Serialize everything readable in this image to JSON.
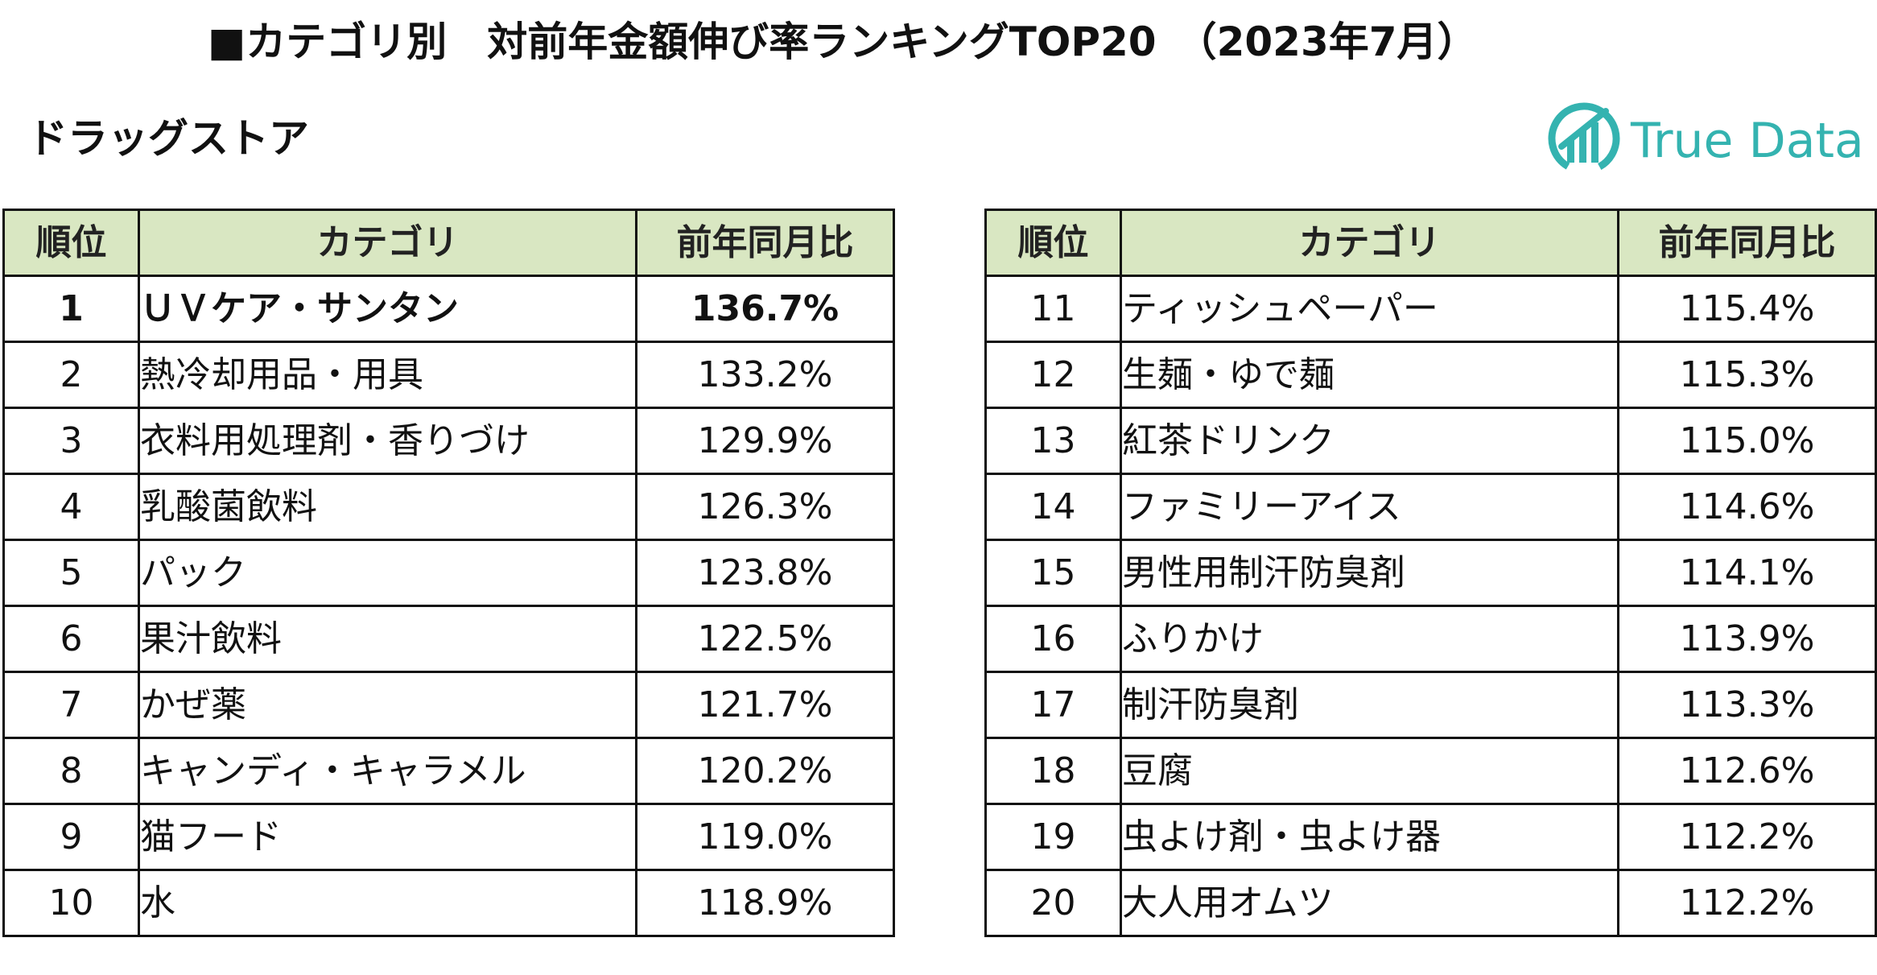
{
  "header": {
    "title": "■カテゴリ別　対前年金額伸び率ランキングTOP20　（2023年7月）",
    "subtitle": "ドラッグストア",
    "logo_text": "True Data"
  },
  "colors": {
    "header_bg": "#d9e7c2",
    "logo": "#34b3b0",
    "border": "#111111"
  },
  "table": {
    "columns": [
      "順位",
      "カテゴリ",
      "前年同月比"
    ],
    "left_rows": [
      {
        "rank": "1",
        "category": "ＵＶケア・サンタン",
        "ratio": "136.7%"
      },
      {
        "rank": "2",
        "category": "熱冷却用品・用具",
        "ratio": "133.2%"
      },
      {
        "rank": "3",
        "category": "衣料用処理剤・香りづけ",
        "ratio": "129.9%"
      },
      {
        "rank": "4",
        "category": "乳酸菌飲料",
        "ratio": "126.3%"
      },
      {
        "rank": "5",
        "category": "パック",
        "ratio": "123.8%"
      },
      {
        "rank": "6",
        "category": "果汁飲料",
        "ratio": "122.5%"
      },
      {
        "rank": "7",
        "category": "かぜ薬",
        "ratio": "121.7%"
      },
      {
        "rank": "8",
        "category": "キャンディ・キャラメル",
        "ratio": "120.2%"
      },
      {
        "rank": "9",
        "category": "猫フード",
        "ratio": "119.0%"
      },
      {
        "rank": "10",
        "category": "水",
        "ratio": "118.9%"
      }
    ],
    "right_rows": [
      {
        "rank": "11",
        "category": "ティッシュペーパー",
        "ratio": "115.4%"
      },
      {
        "rank": "12",
        "category": "生麺・ゆで麺",
        "ratio": "115.3%"
      },
      {
        "rank": "13",
        "category": "紅茶ドリンク",
        "ratio": "115.0%"
      },
      {
        "rank": "14",
        "category": "ファミリーアイス",
        "ratio": "114.6%"
      },
      {
        "rank": "15",
        "category": "男性用制汗防臭剤",
        "ratio": "114.1%"
      },
      {
        "rank": "16",
        "category": "ふりかけ",
        "ratio": "113.9%"
      },
      {
        "rank": "17",
        "category": "制汗防臭剤",
        "ratio": "113.3%"
      },
      {
        "rank": "18",
        "category": "豆腐",
        "ratio": "112.6%"
      },
      {
        "rank": "19",
        "category": "虫よけ剤・虫よけ器",
        "ratio": "112.2%"
      },
      {
        "rank": "20",
        "category": "大人用オムツ",
        "ratio": "112.2%"
      }
    ]
  }
}
